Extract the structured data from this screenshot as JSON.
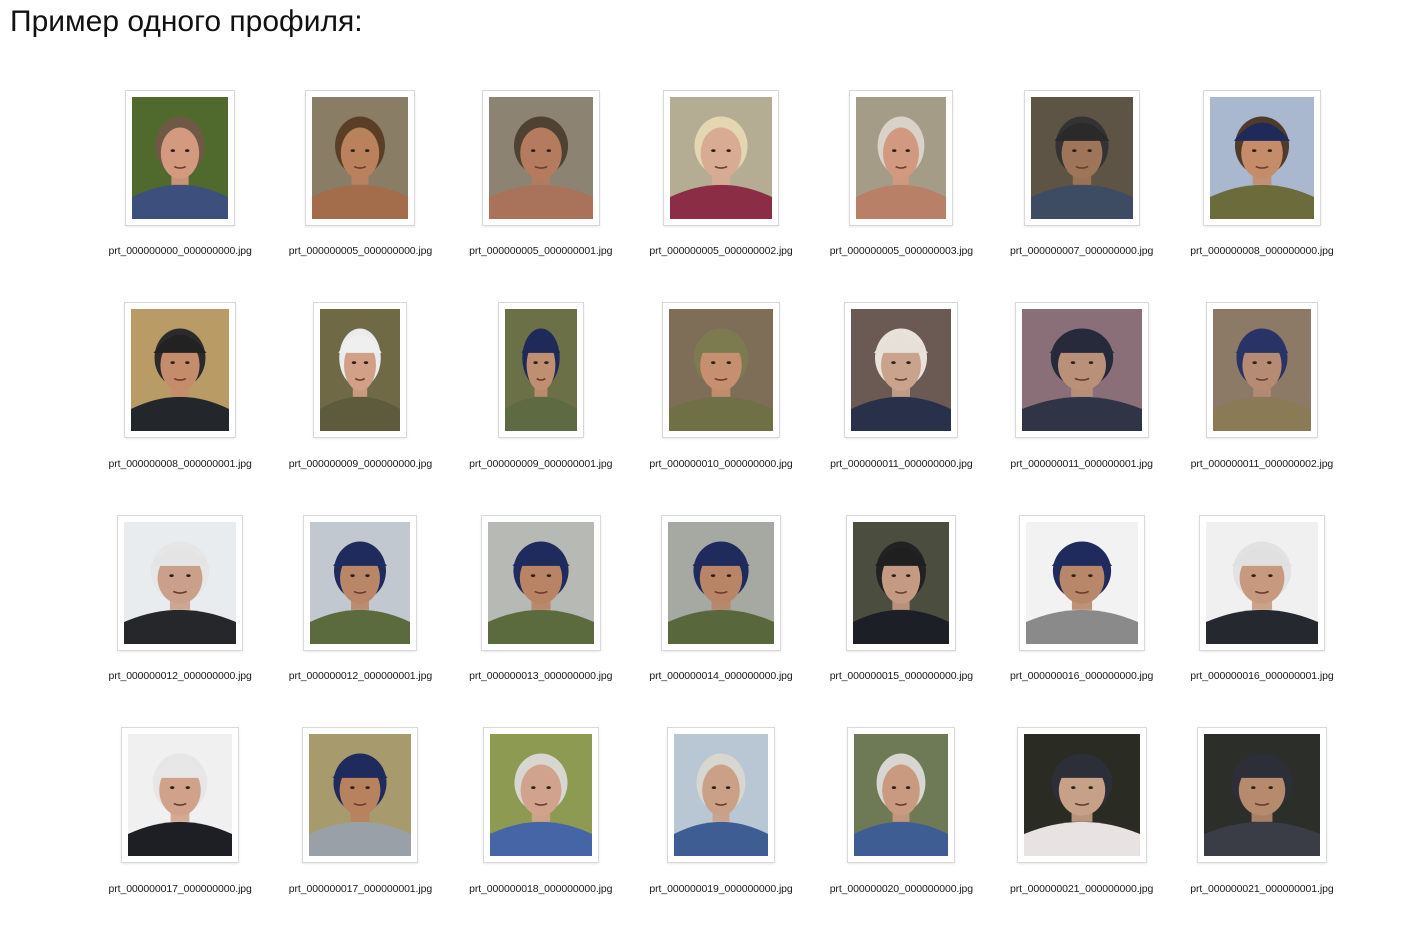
{
  "heading": "Пример одного профиля:",
  "files": [
    {
      "name": "prt_000000000_000000000.jpg",
      "bg": "#4f6a2c",
      "skin": "#d39a80",
      "hair": "#6e5a44",
      "hat": "",
      "clothes": "#3c4f7d",
      "w": 96,
      "h": 122
    },
    {
      "name": "prt_000000005_000000000.jpg",
      "bg": "#8a7d66",
      "skin": "#b9825d",
      "hair": "#5a3e26",
      "hat": "",
      "clothes": "#a36d4c",
      "w": 96,
      "h": 122
    },
    {
      "name": "prt_000000005_000000001.jpg",
      "bg": "#8d8372",
      "skin": "#b47b5e",
      "hair": "#4f4232",
      "hat": "",
      "clothes": "#a8735a",
      "w": 104,
      "h": 122
    },
    {
      "name": "prt_000000005_000000002.jpg",
      "bg": "#b5ac94",
      "skin": "#d8ab93",
      "hair": "#e3d6b0",
      "hat": "",
      "clothes": "#8b2e45",
      "w": 102,
      "h": 122
    },
    {
      "name": "prt_000000005_000000003.jpg",
      "bg": "#a59c88",
      "skin": "#d19a80",
      "hair": "#d8d2c8",
      "hat": "",
      "clothes": "#b98068",
      "w": 90,
      "h": 122
    },
    {
      "name": "prt_000000007_000000000.jpg",
      "bg": "#5e5446",
      "skin": "#9e7558",
      "hair": "#333333",
      "hat": "#2a2a2a",
      "clothes": "#3d4c63",
      "w": 102,
      "h": 122
    },
    {
      "name": "prt_000000008_000000000.jpg",
      "bg": "#a9b7cf",
      "skin": "#c48c68",
      "hair": "#4e3b2a",
      "hat": "#1f2a5a",
      "clothes": "#6b6b3c",
      "w": 104,
      "h": 122
    },
    {
      "name": "prt_000000008_000000001.jpg",
      "bg": "#b99b66",
      "skin": "#c58c6b",
      "hair": "#2b2b2b",
      "hat": "#222222",
      "clothes": "#23262b",
      "w": 98,
      "h": 122
    },
    {
      "name": "prt_000000009_000000000.jpg",
      "bg": "#6f6a45",
      "skin": "#d2a086",
      "hair": "#ebebeb",
      "hat": "#efefef",
      "clothes": "#5e5b3c",
      "w": 80,
      "h": 122
    },
    {
      "name": "prt_000000009_000000001.jpg",
      "bg": "#6c7047",
      "skin": "#c08e70",
      "hair": "#1f2a5a",
      "hat": "#1f2a5a",
      "clothes": "#5d6a42",
      "w": 72,
      "h": 122
    },
    {
      "name": "prt_000000010_000000000.jpg",
      "bg": "#7e6e58",
      "skin": "#c69070",
      "hair": "#7e7a50",
      "hat": "#7c7a4f",
      "clothes": "#6f7046",
      "w": 104,
      "h": 122
    },
    {
      "name": "prt_000000011_000000000.jpg",
      "bg": "#6b5a54",
      "skin": "#c9a38b",
      "hair": "#e8e2da",
      "hat": "#e6e0d8",
      "clothes": "#29314a",
      "w": 100,
      "h": 122
    },
    {
      "name": "prt_000000011_000000001.jpg",
      "bg": "#8a6f78",
      "skin": "#b99178",
      "hair": "#272a3a",
      "hat": "#262a3b",
      "clothes": "#2f3446",
      "w": 120,
      "h": 122
    },
    {
      "name": "prt_000000011_000000002.jpg",
      "bg": "#8d7a66",
      "skin": "#b58c73",
      "hair": "#2a3366",
      "hat": "#2a3366",
      "clothes": "#8a7a56",
      "w": 98,
      "h": 122
    },
    {
      "name": "prt_000000012_000000000.jpg",
      "bg": "#e9ecef",
      "skin": "#caa08a",
      "hair": "#e6e6e6",
      "hat": "#e4e4e4",
      "clothes": "#25272b",
      "w": 112,
      "h": 122
    },
    {
      "name": "prt_000000012_000000001.jpg",
      "bg": "#c2c8cf",
      "skin": "#b98668",
      "hair": "#1f2b5c",
      "hat": "#1f2b5c",
      "clothes": "#5b6b3d",
      "w": 100,
      "h": 122
    },
    {
      "name": "prt_000000013_000000000.jpg",
      "bg": "#b7b9b5",
      "skin": "#b88465",
      "hair": "#1f2b5c",
      "hat": "#1f2b5c",
      "clothes": "#5b6b3d",
      "w": 106,
      "h": 122
    },
    {
      "name": "prt_000000014_000000000.jpg",
      "bg": "#a6a8a2",
      "skin": "#b88566",
      "hair": "#1f2b5c",
      "hat": "#1f2b5c",
      "clothes": "#59683c",
      "w": 106,
      "h": 122
    },
    {
      "name": "prt_000000015_000000000.jpg",
      "bg": "#4b4d3f",
      "skin": "#c59a82",
      "hair": "#222222",
      "hat": "#1f1f1f",
      "clothes": "#1c1f26",
      "w": 96,
      "h": 122
    },
    {
      "name": "prt_000000016_000000000.jpg",
      "bg": "#f2f2f2",
      "skin": "#b88769",
      "hair": "#1f2b5c",
      "hat": "#1f2b5c",
      "clothes": "#8a8a8a",
      "w": 112,
      "h": 122
    },
    {
      "name": "prt_000000016_000000001.jpg",
      "bg": "#f0f0f0",
      "skin": "#c79a80",
      "hair": "#e2e2e2",
      "hat": "#e0e0e0",
      "clothes": "#25282e",
      "w": 112,
      "h": 122
    },
    {
      "name": "prt_000000017_000000000.jpg",
      "bg": "#f0f0f0",
      "skin": "#d0a28a",
      "hair": "#e6e6e6",
      "hat": "#e7e7e7",
      "clothes": "#1e1f24",
      "w": 104,
      "h": 122
    },
    {
      "name": "prt_000000017_000000001.jpg",
      "bg": "#a79a6d",
      "skin": "#b8825f",
      "hair": "#1f2b5c",
      "hat": "#1f2b5c",
      "clothes": "#9aa0a8",
      "w": 102,
      "h": 122
    },
    {
      "name": "prt_000000018_000000000.jpg",
      "bg": "#8d9a52",
      "skin": "#d1a38c",
      "hair": "#d8d6d0",
      "hat": "",
      "clothes": "#4565a6",
      "w": 102,
      "h": 122
    },
    {
      "name": "prt_000000019_000000000.jpg",
      "bg": "#b9c6d3",
      "skin": "#caa086",
      "hair": "#d8d6d0",
      "hat": "",
      "clothes": "#3e5d93",
      "w": 94,
      "h": 122
    },
    {
      "name": "prt_000000020_000000000.jpg",
      "bg": "#6d7a55",
      "skin": "#c99a80",
      "hair": "#d8d6d0",
      "hat": "",
      "clothes": "#3e5d93",
      "w": 94,
      "h": 122
    },
    {
      "name": "prt_000000021_000000000.jpg",
      "bg": "#2a2b22",
      "skin": "#c7a088",
      "hair": "#2c2f38",
      "hat": "#2c2f38",
      "clothes": "#e8e2e2",
      "w": 116,
      "h": 122
    },
    {
      "name": "prt_000000021_000000001.jpg",
      "bg": "#2c2e2a",
      "skin": "#b58a6d",
      "hair": "#2c2f38",
      "hat": "#2c2f38",
      "clothes": "#3a3d45",
      "w": 116,
      "h": 122
    }
  ]
}
